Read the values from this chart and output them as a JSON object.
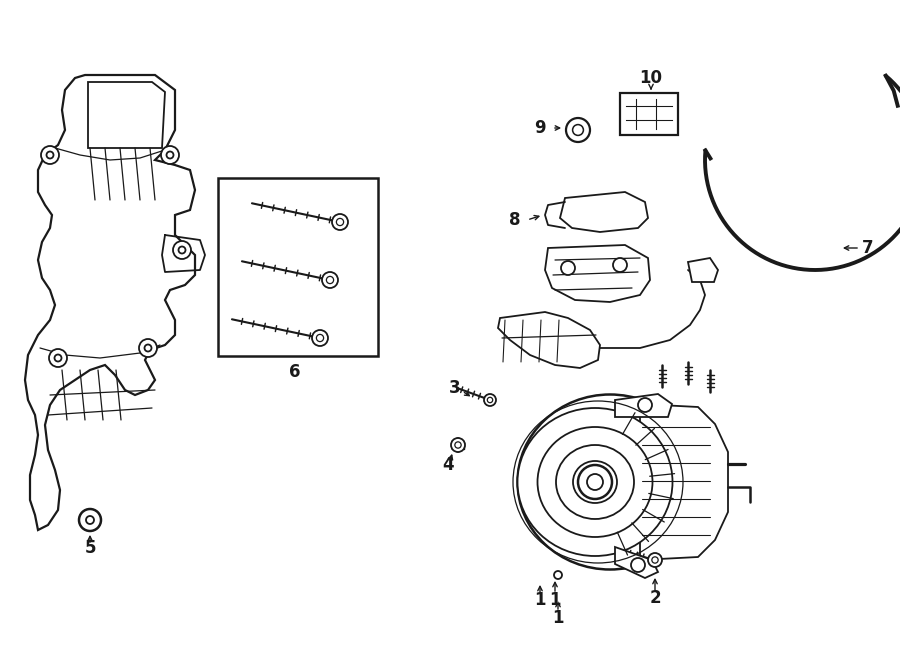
{
  "bg_color": "#ffffff",
  "line_color": "#1a1a1a",
  "lw": 1.3,
  "fig_w": 9.0,
  "fig_h": 6.61,
  "dpi": 100
}
